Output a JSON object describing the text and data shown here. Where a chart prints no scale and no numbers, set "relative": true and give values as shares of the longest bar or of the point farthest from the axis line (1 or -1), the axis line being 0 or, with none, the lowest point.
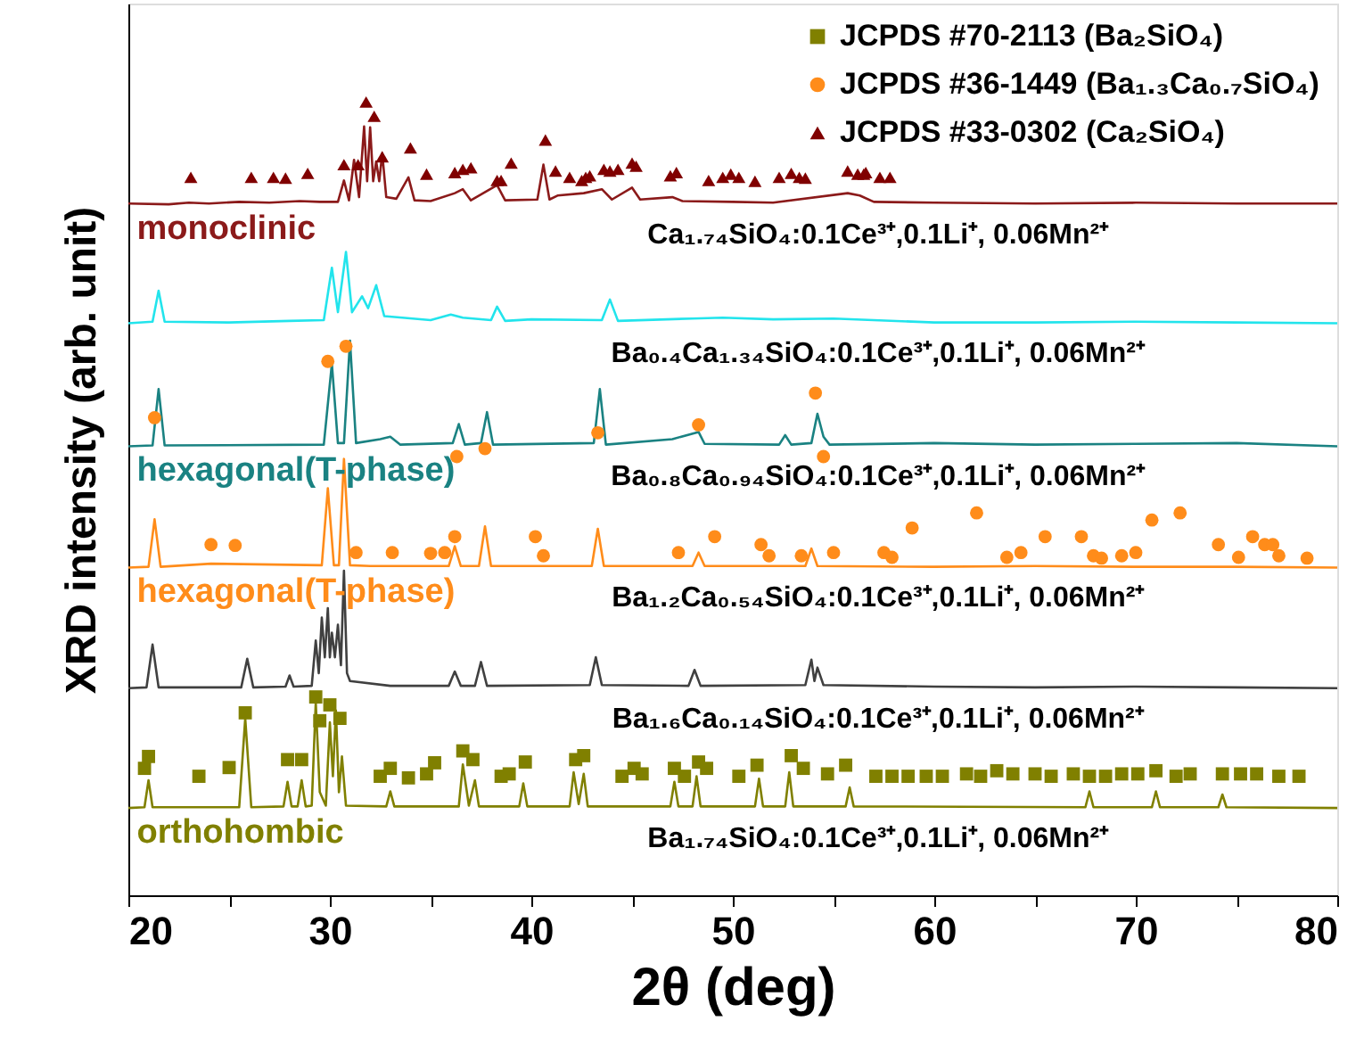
{
  "chart_data": {
    "type": "line",
    "relative": true,
    "xlabel": "2θ (deg)",
    "ylabel": "XRD intensity (arb. unit)",
    "xlim": [
      20,
      80
    ],
    "xticks": [
      20,
      {
        "value": 25,
        "label": null
      },
      30,
      {
        "value": 35,
        "label": null
      },
      40,
      {
        "value": 45,
        "label": null
      },
      50,
      {
        "value": 55,
        "label": null
      },
      60,
      {
        "value": 65,
        "label": null
      },
      70,
      {
        "value": 75,
        "label": null
      },
      80
    ],
    "tick_labels": "x",
    "legend": "top right",
    "series": [
      {
        "name": "Ca₁.₇₄SiO₄:0.1Ce³⁺,0.1Li⁺, 0.06Mn²⁺",
        "color": "#8b1a1a",
        "x": [
          20,
          22,
          23,
          24,
          25.5,
          27,
          28.5,
          29.5,
          30.4,
          30.7,
          30.95,
          31.2,
          31.45,
          31.7,
          31.85,
          32.0,
          32.15,
          32.3,
          32.45,
          32.6,
          32.8,
          33.3,
          33.9,
          34.2,
          35,
          36.2,
          36.6,
          37,
          38.3,
          38.7,
          40.3,
          40.6,
          40.9,
          41.3,
          42.6,
          43.5,
          44,
          45.0,
          45.4,
          47.0,
          47.5,
          50,
          52,
          55.7,
          56.3,
          57,
          60,
          65,
          70,
          75,
          80
        ],
        "values": [
          0.872,
          0.871,
          0.873,
          0.872,
          0.874,
          0.873,
          0.875,
          0.874,
          0.874,
          0.901,
          0.876,
          0.927,
          0.88,
          0.969,
          0.9,
          0.968,
          0.9,
          0.925,
          0.9,
          0.935,
          0.88,
          0.878,
          0.905,
          0.876,
          0.875,
          0.885,
          0.89,
          0.876,
          0.895,
          0.876,
          0.877,
          0.921,
          0.877,
          0.882,
          0.885,
          0.89,
          0.877,
          0.892,
          0.877,
          0.88,
          0.875,
          0.874,
          0.873,
          0.885,
          0.882,
          0.874,
          0.873,
          0.872,
          0.873,
          0.872,
          0.872
        ]
      },
      {
        "name": "Ba₀.₄Ca₁.₃₄SiO₄:0.1Ce³⁺,0.1Li⁺, 0.06Mn²⁺",
        "color": "#22e4ec",
        "x": [
          20,
          21.2,
          21.5,
          21.8,
          25,
          28,
          29.7,
          30.1,
          30.4,
          30.8,
          31.1,
          31.6,
          31.9,
          32.3,
          32.7,
          35,
          36,
          36.6,
          38.0,
          38.3,
          38.7,
          40,
          43.5,
          43.9,
          44.3,
          48,
          49.5,
          52,
          55,
          60,
          65,
          70,
          75,
          80
        ],
        "values": [
          0.721,
          0.723,
          0.762,
          0.723,
          0.722,
          0.724,
          0.725,
          0.791,
          0.735,
          0.811,
          0.735,
          0.755,
          0.74,
          0.769,
          0.73,
          0.725,
          0.732,
          0.728,
          0.725,
          0.742,
          0.724,
          0.726,
          0.725,
          0.751,
          0.724,
          0.727,
          0.728,
          0.726,
          0.727,
          0.722,
          0.722,
          0.723,
          0.722,
          0.721
        ]
      },
      {
        "name": "Ba₀.₈Ca₀.₉₄SiO₄:0.1Ce³⁺,0.1Li⁺, 0.06Mn²⁺",
        "color": "#1a8282",
        "x": [
          20,
          21.2,
          21.5,
          21.8,
          29.7,
          30.1,
          30.4,
          30.7,
          31.0,
          31.3,
          32.5,
          33.0,
          33.5,
          36.1,
          36.4,
          36.7,
          37.5,
          37.8,
          38.1,
          43.1,
          43.4,
          43.7,
          47,
          48.3,
          48.6,
          52.3,
          52.6,
          52.9,
          53.9,
          54.2,
          54.5,
          54.8,
          60,
          65,
          70,
          75,
          80
        ],
        "values": [
          0.566,
          0.567,
          0.638,
          0.567,
          0.568,
          0.67,
          0.57,
          0.57,
          0.699,
          0.57,
          0.575,
          0.578,
          0.568,
          0.57,
          0.594,
          0.568,
          0.57,
          0.609,
          0.568,
          0.57,
          0.638,
          0.568,
          0.575,
          0.584,
          0.569,
          0.568,
          0.58,
          0.568,
          0.57,
          0.607,
          0.578,
          0.568,
          0.57,
          0.568,
          0.569,
          0.57,
          0.566
        ]
      },
      {
        "name": "Ba₁.₂Ca₀.₅₄SiO₄:0.1Ce³⁺,0.1Li⁺, 0.06Mn²⁺",
        "color": "#ff8c1a",
        "x": [
          20,
          21.0,
          21.3,
          21.6,
          24.1,
          29.6,
          29.9,
          30.2,
          30.45,
          30.7,
          31.0,
          32,
          35.9,
          36.2,
          36.5,
          37.4,
          37.7,
          38.0,
          43.0,
          43.3,
          43.6,
          48.0,
          48.3,
          48.6,
          53.6,
          53.9,
          54.2,
          60,
          65,
          70,
          75,
          80
        ],
        "values": [
          0.413,
          0.414,
          0.474,
          0.414,
          0.418,
          0.416,
          0.513,
          0.416,
          0.416,
          0.55,
          0.416,
          0.415,
          0.415,
          0.44,
          0.415,
          0.415,
          0.465,
          0.415,
          0.415,
          0.462,
          0.415,
          0.415,
          0.432,
          0.415,
          0.415,
          0.437,
          0.415,
          0.414,
          0.415,
          0.414,
          0.414,
          0.413
        ]
      },
      {
        "name": "Ba₁.₆Ca₀.₁₄SiO₄:0.1Ce³⁺,0.1Li⁺, 0.06Mn²⁺",
        "color": "#404040",
        "x": [
          20,
          20.9,
          21.2,
          21.5,
          25.6,
          25.9,
          26.2,
          27.8,
          28.0,
          28.2,
          29.1,
          29.3,
          29.45,
          29.6,
          29.75,
          29.9,
          30.0,
          30.1,
          30.25,
          30.4,
          30.55,
          30.7,
          30.85,
          31.0,
          33,
          35.9,
          36.2,
          36.5,
          37.2,
          37.5,
          37.8,
          42.9,
          43.2,
          43.5,
          47.8,
          48.1,
          48.4,
          53.6,
          53.9,
          54.05,
          54.2,
          54.5,
          60,
          65,
          70,
          75,
          80
        ],
        "values": [
          0.261,
          0.262,
          0.316,
          0.262,
          0.262,
          0.298,
          0.262,
          0.263,
          0.277,
          0.263,
          0.264,
          0.321,
          0.28,
          0.35,
          0.3,
          0.362,
          0.3,
          0.331,
          0.3,
          0.341,
          0.29,
          0.409,
          0.28,
          0.27,
          0.264,
          0.264,
          0.282,
          0.264,
          0.264,
          0.294,
          0.264,
          0.265,
          0.3,
          0.265,
          0.264,
          0.284,
          0.264,
          0.265,
          0.297,
          0.27,
          0.287,
          0.265,
          0.263,
          0.262,
          0.263,
          0.262,
          0.261
        ]
      },
      {
        "name": "Ba₁.₇₄SiO₄:0.1Ce³⁺,0.1Li⁺, 0.06Mn²⁺",
        "color": "#808000",
        "x": [
          20,
          20.8,
          21.0,
          21.2,
          25.5,
          25.8,
          26.1,
          27.7,
          27.9,
          28.1,
          28.4,
          28.6,
          28.8,
          29.1,
          29.3,
          29.5,
          29.8,
          30.0,
          30.15,
          30.3,
          30.45,
          30.6,
          30.8,
          32.8,
          33.0,
          33.2,
          36.4,
          36.6,
          36.9,
          37.2,
          37.4,
          39.4,
          39.6,
          39.8,
          41.9,
          42.1,
          42.35,
          42.6,
          42.8,
          46.9,
          47.1,
          47.3,
          48.0,
          48.2,
          48.4,
          51.1,
          51.3,
          51.5,
          52.6,
          52.8,
          53.0,
          55.6,
          55.8,
          56.0,
          67.5,
          67.7,
          67.9,
          70.8,
          71.0,
          71.2,
          74.1,
          74.3,
          74.5,
          80
        ],
        "values": [
          0.11,
          0.111,
          0.145,
          0.111,
          0.111,
          0.223,
          0.111,
          0.112,
          0.143,
          0.112,
          0.112,
          0.145,
          0.112,
          0.113,
          0.243,
          0.13,
          0.113,
          0.218,
          0.15,
          0.233,
          0.13,
          0.175,
          0.113,
          0.112,
          0.131,
          0.112,
          0.112,
          0.165,
          0.113,
          0.145,
          0.112,
          0.112,
          0.141,
          0.112,
          0.112,
          0.155,
          0.115,
          0.153,
          0.112,
          0.112,
          0.143,
          0.112,
          0.112,
          0.15,
          0.112,
          0.112,
          0.147,
          0.112,
          0.112,
          0.155,
          0.112,
          0.112,
          0.136,
          0.112,
          0.111,
          0.131,
          0.111,
          0.111,
          0.131,
          0.111,
          0.111,
          0.127,
          0.111,
          0.11
        ]
      },
      {
        "name": "JCPDS #70-2113 (Ba₂SiO₄)",
        "color": "#808000",
        "type": "scatter",
        "marker": "square",
        "x": [
          20.8,
          21.0,
          23.5,
          25.0,
          25.8,
          27.9,
          28.6,
          29.3,
          29.5,
          30.0,
          30.5,
          32.5,
          33.0,
          33.9,
          34.8,
          35.2,
          36.6,
          37.1,
          38.5,
          38.9,
          39.7,
          42.2,
          42.6,
          44.5,
          45.1,
          45.5,
          47.1,
          47.6,
          48.3,
          48.7,
          50.3,
          51.2,
          52.9,
          53.5,
          54.7,
          55.6,
          57.1,
          57.9,
          58.7,
          59.6,
          60.4,
          61.6,
          62.3,
          63.1,
          63.9,
          65.0,
          65.8,
          66.9,
          67.7,
          68.5,
          69.3,
          70.1,
          71.0,
          72.0,
          72.7,
          74.3,
          75.2,
          76.0,
          77.1,
          78.1
        ],
        "values": [
          0.16,
          0.175,
          0.15,
          0.161,
          0.23,
          0.171,
          0.171,
          0.25,
          0.22,
          0.24,
          0.223,
          0.15,
          0.16,
          0.148,
          0.153,
          0.167,
          0.182,
          0.171,
          0.15,
          0.153,
          0.168,
          0.171,
          0.176,
          0.15,
          0.16,
          0.153,
          0.16,
          0.15,
          0.168,
          0.16,
          0.15,
          0.164,
          0.176,
          0.16,
          0.153,
          0.164,
          0.15,
          0.15,
          0.15,
          0.15,
          0.15,
          0.153,
          0.15,
          0.157,
          0.153,
          0.153,
          0.15,
          0.153,
          0.15,
          0.15,
          0.153,
          0.153,
          0.157,
          0.15,
          0.153,
          0.153,
          0.153,
          0.153,
          0.15,
          0.15
        ]
      },
      {
        "name": "JCPDS #36-1449 (Ba₁.₃Ca₀.₇SiO₄)",
        "color": "#ff8c1a",
        "type": "scatter",
        "marker": "circle",
        "x": [
          21.3,
          29.9,
          30.8,
          36.3,
          37.7,
          43.3,
          48.3,
          54.1,
          54.5,
          24.1,
          25.3,
          31.3,
          33.1,
          35.0,
          35.7,
          36.2,
          40.2,
          40.6,
          47.3,
          49.1,
          51.4,
          51.8,
          53.4,
          55.0,
          57.5,
          57.9,
          58.9,
          62.1,
          63.6,
          64.3,
          65.5,
          67.3,
          67.9,
          68.3,
          69.3,
          70.0,
          70.8,
          72.2,
          74.1,
          75.1,
          75.8,
          76.4,
          76.8,
          77.1,
          78.5
        ],
        "values": [
          0.602,
          0.673,
          0.692,
          0.553,
          0.563,
          0.583,
          0.593,
          0.633,
          0.553,
          0.442,
          0.441,
          0.432,
          0.432,
          0.431,
          0.432,
          0.452,
          0.452,
          0.428,
          0.432,
          0.452,
          0.442,
          0.428,
          0.428,
          0.432,
          0.432,
          0.426,
          0.463,
          0.482,
          0.426,
          0.432,
          0.452,
          0.452,
          0.428,
          0.425,
          0.428,
          0.432,
          0.473,
          0.482,
          0.442,
          0.426,
          0.452,
          0.442,
          0.442,
          0.428,
          0.425
        ]
      },
      {
        "name": "JCPDS #33-0302 (Ca₂SiO₄)",
        "color": "#800000",
        "type": "scatter",
        "marker": "triangle",
        "x": [
          23.1,
          26.1,
          27.2,
          27.8,
          28.9,
          30.7,
          31.4,
          31.8,
          32.2,
          32.6,
          34.0,
          34.8,
          36.2,
          36.6,
          37.0,
          38.3,
          38.5,
          39.0,
          40.7,
          41.2,
          41.9,
          42.5,
          42.7,
          42.9,
          43.6,
          43.9,
          44.3,
          45.0,
          45.2,
          46.9,
          47.2,
          48.8,
          49.5,
          49.9,
          50.3,
          51.1,
          52.3,
          52.9,
          53.3,
          53.6,
          55.7,
          56.2,
          56.5,
          56.6,
          57.3,
          57.8
        ],
        "values": [
          0.905,
          0.905,
          0.905,
          0.904,
          0.91,
          0.921,
          0.921,
          1.0,
          0.982,
          0.931,
          0.942,
          0.909,
          0.911,
          0.915,
          0.917,
          0.901,
          0.901,
          0.923,
          0.952,
          0.913,
          0.905,
          0.901,
          0.905,
          0.907,
          0.915,
          0.913,
          0.915,
          0.923,
          0.919,
          0.907,
          0.911,
          0.901,
          0.905,
          0.909,
          0.905,
          0.9,
          0.905,
          0.91,
          0.905,
          0.904,
          0.913,
          0.909,
          0.909,
          0.911,
          0.905,
          0.905
        ]
      }
    ],
    "annotations": [
      "monoclinic",
      "hexagonal(T-phase)",
      "hexagonal(T-phase)",
      "orthohombic"
    ]
  }
}
